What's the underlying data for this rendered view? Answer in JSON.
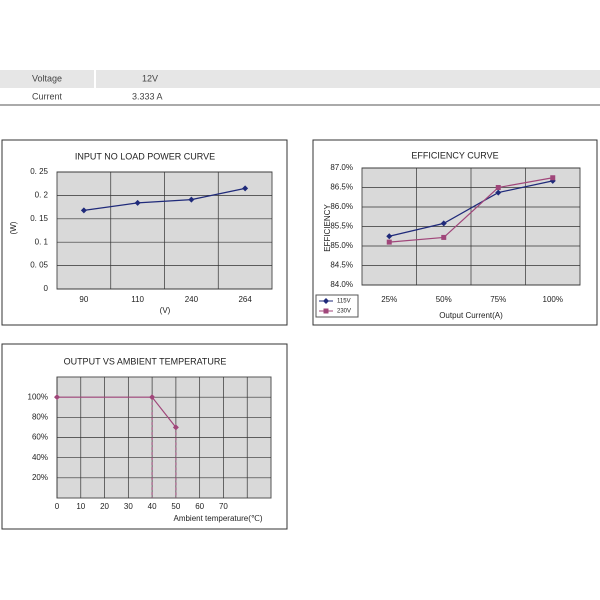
{
  "table": {
    "rows": [
      [
        "Voltage",
        "12V"
      ],
      [
        "Current",
        "3.333 A"
      ]
    ]
  },
  "chart_data": [
    {
      "type": "line",
      "title": "INPUT NO LOAD POWER CURVE",
      "x_label": "(V)",
      "y_label": "(W)",
      "categories": [
        "90",
        "110",
        "240",
        "264"
      ],
      "series": [
        {
          "color": "#1f2a7a",
          "marker": "diamond",
          "values": [
            0.168,
            0.184,
            0.191,
            0.215
          ]
        }
      ],
      "ylim": [
        0,
        0.25
      ],
      "yticks": [
        0,
        {
          "value": 0.05,
          "label": "0. 05"
        },
        {
          "value": 0.1,
          "label": "0. 1"
        },
        {
          "value": 0.15,
          "label": "0. 15"
        },
        {
          "value": 0.2,
          "label": "0. 2"
        },
        {
          "value": 0.25,
          "label": "0. 25"
        }
      ],
      "grid": true
    },
    {
      "type": "line",
      "title": "EFFICIENCY CURVE",
      "x_label": "Output Current(A)",
      "y_label": "EFFICIENCY",
      "categories": [
        "25%",
        "50%",
        "75%",
        "100%"
      ],
      "series": [
        {
          "name": "115V",
          "color": "#1f2a7a",
          "marker": "diamond",
          "values": [
            85.25,
            85.58,
            86.37,
            86.67
          ]
        },
        {
          "name": "230V",
          "color": "#a0467a",
          "marker": "square",
          "values": [
            85.1,
            85.22,
            86.5,
            86.75
          ]
        }
      ],
      "ylim": [
        84,
        87
      ],
      "yticks": [
        {
          "value": 84,
          "label": "84.0%"
        },
        {
          "value": 84.5,
          "label": "84.5%"
        },
        {
          "value": 85,
          "label": "85.0%"
        },
        {
          "value": 85.5,
          "label": "85.5%"
        },
        {
          "value": 86,
          "label": "86.0%"
        },
        {
          "value": 86.5,
          "label": "86.5%"
        },
        {
          "value": 87,
          "label": "87.0%"
        }
      ],
      "grid": true,
      "legend": "bottom-left"
    },
    {
      "type": "line",
      "title": "OUTPUT VS AMBIENT TEMPERATURE",
      "x_label": "Ambient temperature(℃)",
      "x": [
        0,
        40,
        50
      ],
      "series": [
        {
          "color": "#a0467a",
          "marker": "diamond",
          "values": [
            100,
            100,
            70
          ]
        }
      ],
      "xlim": [
        0,
        90
      ],
      "xticks": [
        0,
        10,
        20,
        30,
        40,
        50,
        60,
        70
      ],
      "ylim": [
        0,
        120
      ],
      "yticks": [
        {
          "value": 20,
          "label": "20%"
        },
        {
          "value": 40,
          "label": "40%"
        },
        {
          "value": 60,
          "label": "60%"
        },
        {
          "value": 80,
          "label": "80%"
        },
        {
          "value": 100,
          "label": "100%"
        }
      ],
      "grid": true
    }
  ]
}
